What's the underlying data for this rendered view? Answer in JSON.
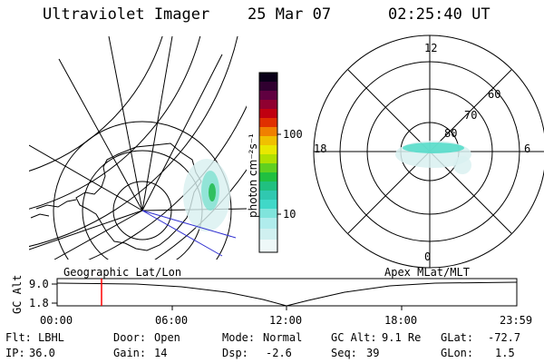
{
  "header": {
    "title": "Ultraviolet Imager",
    "date": "25 Mar 07",
    "time": "02:25:40 UT"
  },
  "left_map": {
    "label": "Geographic Lat/Lon"
  },
  "right_map": {
    "label": "Apex MLat/MLT",
    "mlt_labels": [
      "12",
      "18",
      "6",
      "0"
    ],
    "lat_labels": [
      "60",
      "70",
      "80"
    ]
  },
  "colorbar": {
    "unit_label": "photon cm⁻²s⁻¹",
    "tick_labels": [
      "100",
      "10"
    ]
  },
  "altitude_plot": {
    "axis_label": "GC Alt",
    "y_ticks": [
      "9.0",
      "1.8"
    ],
    "time_ticks": [
      "00:00",
      "06:00",
      "12:00",
      "18:00",
      "23:59"
    ],
    "marker_time": "02:25"
  },
  "info": {
    "flt_label": "Flt:",
    "flt_value": "LBHL",
    "door_label": "Door:",
    "door_value": "Open",
    "mode_label": "Mode:",
    "mode_value": "Normal",
    "gcalt_label": "GC Alt:",
    "gcalt_value": "9.1 Re",
    "glat_label": "GLat:",
    "glat_value": "-72.7",
    "ip_label": "IP:",
    "ip_value": "36.0",
    "gain_label": "Gain:",
    "gain_value": "14",
    "dsp_label": "Dsp:",
    "dsp_value": "-2.6",
    "seq_label": "Seq:",
    "seq_value": "39",
    "glon_label": "GLon:",
    "glon_value": "1.5"
  },
  "colors": {
    "frame": "#000000",
    "blue_line": "#3030d0",
    "marker": "#ff0000",
    "aurora": "#40d8c8"
  }
}
